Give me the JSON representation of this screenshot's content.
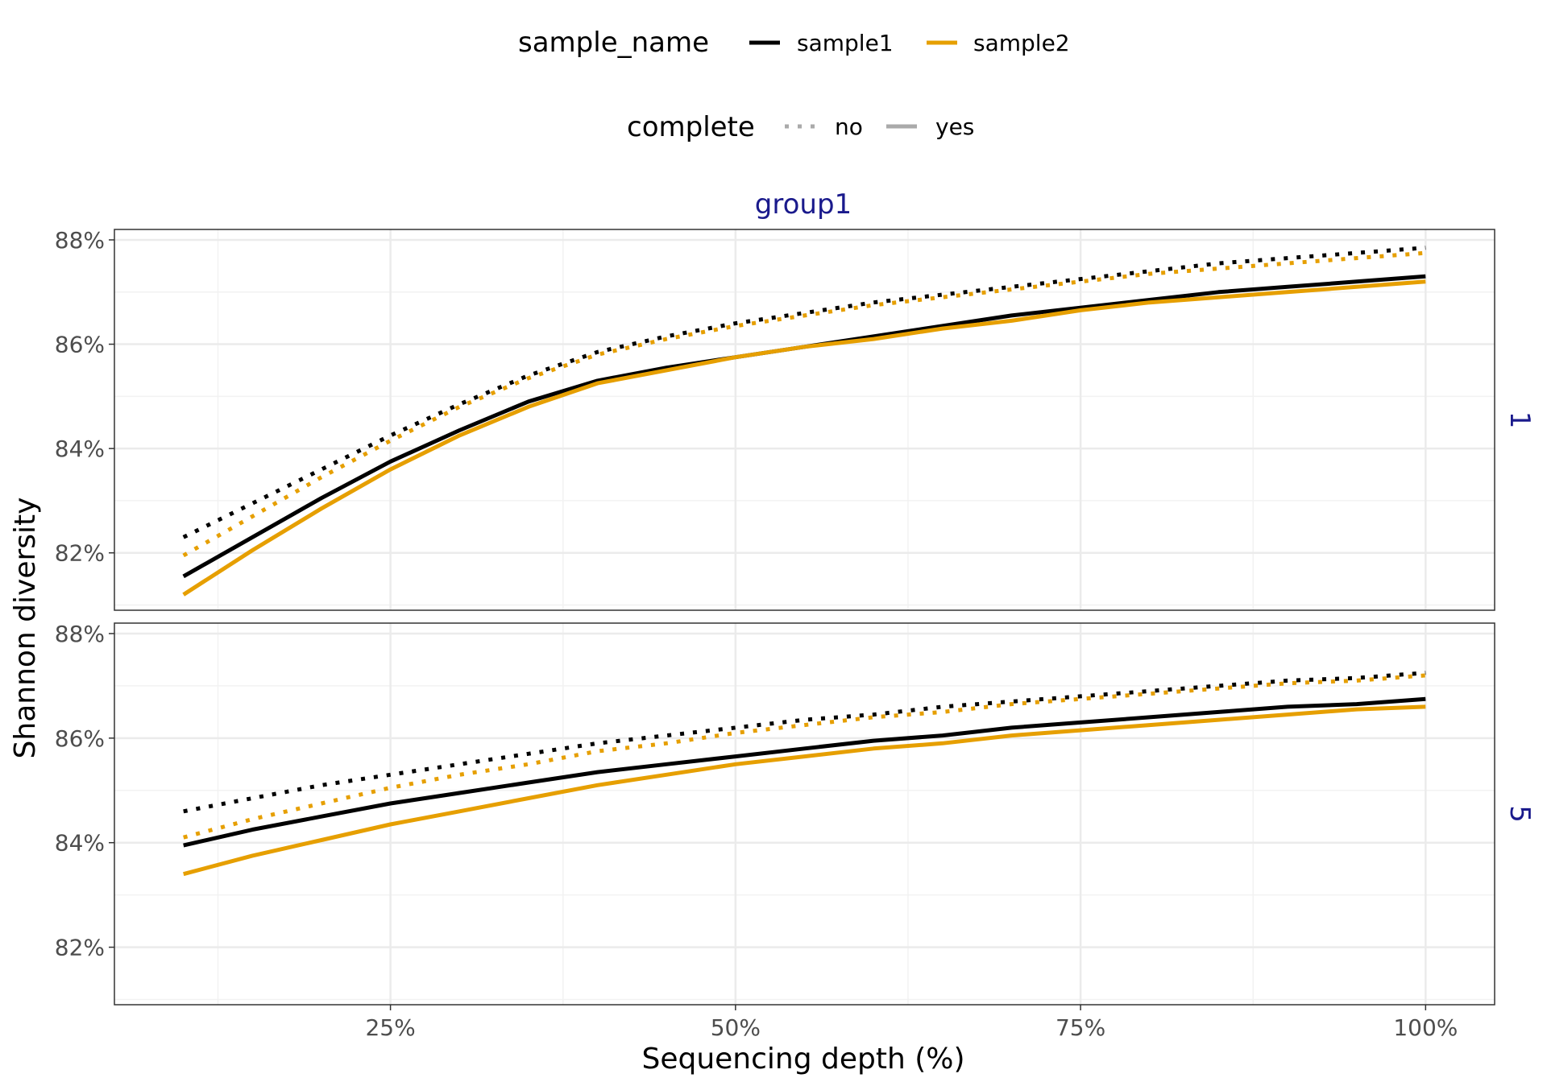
{
  "legend": {
    "color_title": "sample_name",
    "color_items": [
      {
        "label": "sample1",
        "color": "#000000"
      },
      {
        "label": "sample2",
        "color": "#E69F00"
      }
    ],
    "linetype_title": "complete",
    "linetype_items": [
      {
        "label": "no",
        "style": "dotted",
        "color": "#aaaaaa"
      },
      {
        "label": "yes",
        "style": "solid",
        "color": "#aaaaaa"
      }
    ]
  },
  "chart_data": {
    "type": "line",
    "column_strip": "group1",
    "xlabel": "Sequencing depth (%)",
    "ylabel": "Shannon diversity",
    "xlim": [
      5,
      105
    ],
    "ylim": [
      80.9,
      88.2
    ],
    "x_ticks": [
      25,
      50,
      75,
      100
    ],
    "x_tick_labels": [
      "25%",
      "50%",
      "75%",
      "100%"
    ],
    "y_ticks": [
      82,
      84,
      86,
      88
    ],
    "y_tick_labels": [
      "82%",
      "84%",
      "86%",
      "88%"
    ],
    "grid": true,
    "legend_position": "top",
    "x": [
      10,
      15,
      20,
      25,
      30,
      35,
      40,
      45,
      50,
      55,
      60,
      65,
      70,
      75,
      80,
      85,
      90,
      95,
      100
    ],
    "panels": [
      {
        "strip": "1",
        "series": [
          {
            "sample_name": "sample1",
            "complete": "no",
            "values": [
              82.3,
              82.95,
              83.6,
              84.25,
              84.85,
              85.4,
              85.85,
              86.15,
              86.4,
              86.6,
              86.8,
              86.95,
              87.1,
              87.25,
              87.4,
              87.55,
              87.65,
              87.75,
              87.85
            ]
          },
          {
            "sample_name": "sample2",
            "complete": "no",
            "values": [
              81.95,
              82.7,
              83.45,
              84.15,
              84.8,
              85.35,
              85.8,
              86.1,
              86.35,
              86.55,
              86.75,
              86.9,
              87.05,
              87.2,
              87.35,
              87.45,
              87.55,
              87.65,
              87.75
            ]
          },
          {
            "sample_name": "sample1",
            "complete": "yes",
            "values": [
              81.55,
              82.3,
              83.05,
              83.75,
              84.35,
              84.9,
              85.3,
              85.55,
              85.75,
              85.95,
              86.15,
              86.35,
              86.55,
              86.7,
              86.85,
              87.0,
              87.1,
              87.2,
              87.3
            ]
          },
          {
            "sample_name": "sample2",
            "complete": "yes",
            "values": [
              81.2,
              82.05,
              82.85,
              83.6,
              84.25,
              84.8,
              85.25,
              85.5,
              85.75,
              85.95,
              86.1,
              86.3,
              86.45,
              86.65,
              86.8,
              86.9,
              87.0,
              87.1,
              87.2
            ]
          }
        ]
      },
      {
        "strip": "5",
        "series": [
          {
            "sample_name": "sample1",
            "complete": "no",
            "values": [
              84.6,
              84.85,
              85.1,
              85.3,
              85.5,
              85.7,
              85.9,
              86.05,
              86.2,
              86.35,
              86.45,
              86.6,
              86.7,
              86.8,
              86.9,
              87.0,
              87.1,
              87.15,
              87.25
            ]
          },
          {
            "sample_name": "sample2",
            "complete": "no",
            "values": [
              84.1,
              84.45,
              84.75,
              85.05,
              85.3,
              85.5,
              85.75,
              85.9,
              86.1,
              86.25,
              86.4,
              86.5,
              86.65,
              86.75,
              86.85,
              86.95,
              87.05,
              87.1,
              87.2
            ]
          },
          {
            "sample_name": "sample1",
            "complete": "yes",
            "values": [
              83.95,
              84.25,
              84.5,
              84.75,
              84.95,
              85.15,
              85.35,
              85.5,
              85.65,
              85.8,
              85.95,
              86.05,
              86.2,
              86.3,
              86.4,
              86.5,
              86.6,
              86.65,
              86.75
            ]
          },
          {
            "sample_name": "sample2",
            "complete": "yes",
            "values": [
              83.4,
              83.75,
              84.05,
              84.35,
              84.6,
              84.85,
              85.1,
              85.3,
              85.5,
              85.65,
              85.8,
              85.9,
              86.05,
              86.15,
              86.25,
              86.35,
              86.45,
              86.55,
              86.6
            ]
          }
        ]
      }
    ]
  }
}
